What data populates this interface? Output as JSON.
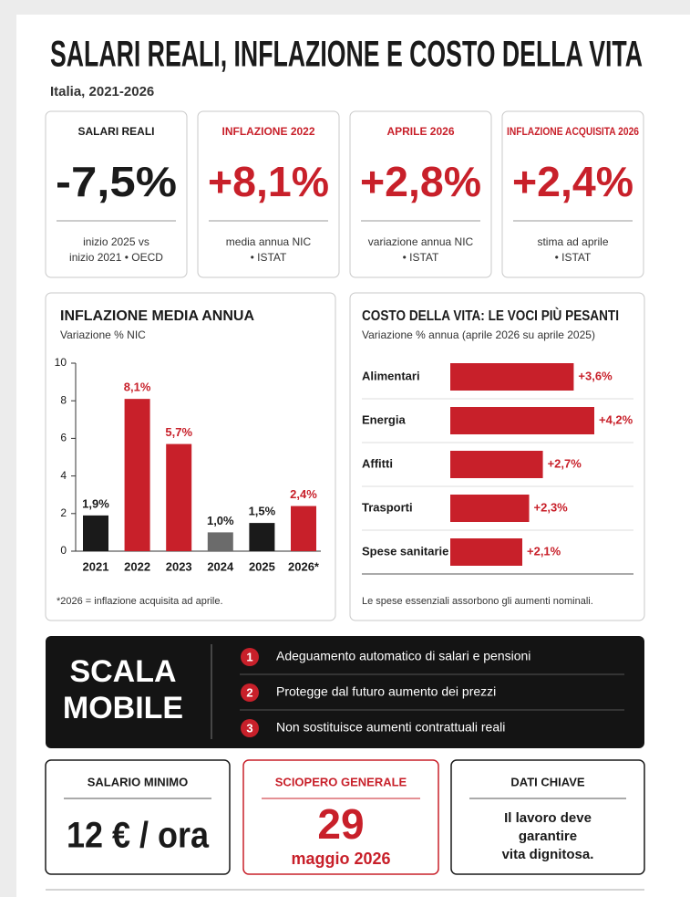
{
  "header": {
    "title": "SALARI REALI, INFLAZIONE E COSTO DELLA VITA",
    "subtitle": "Italia, 2021-2026"
  },
  "kpis": [
    {
      "label": "SALARI REALI",
      "value": "-7,5%",
      "note": [
        "inizio 2025 vs",
        "inizio 2021 • OECD"
      ]
    },
    {
      "label": "INFLAZIONE 2022",
      "value": "+8,1%",
      "note": [
        "media annua NIC",
        "• ISTAT"
      ]
    },
    {
      "label": "APRILE 2026",
      "value": "+2,8%",
      "note": [
        "variazione annua NIC",
        "• ISTAT"
      ]
    },
    {
      "label": "INFLAZIONE ACQUISITA 2026",
      "value": "+2,4%",
      "note": [
        "stima ad aprile",
        "• ISTAT"
      ]
    }
  ],
  "chart_data": [
    {
      "type": "bar",
      "title": "INFLAZIONE MEDIA ANNUA",
      "subtitle": "Variazione % NIC",
      "categories": [
        "2021",
        "2022",
        "2023",
        "2024",
        "2025",
        "2026*"
      ],
      "values": [
        1.9,
        8.1,
        5.7,
        1.0,
        1.5,
        2.4
      ],
      "value_labels": [
        "1,9%",
        "8,1%",
        "5,7%",
        "1,0%",
        "1,5%",
        "2,4%"
      ],
      "colors": [
        "#1a1a1a",
        "#c8202a",
        "#c8202a",
        "#6b6b6b",
        "#1a1a1a",
        "#c8202a"
      ],
      "label_colors": [
        "#1a1a1a",
        "#c8202a",
        "#c8202a",
        "#1a1a1a",
        "#1a1a1a",
        "#c8202a"
      ],
      "ylim": [
        0,
        10
      ],
      "yticks": [
        0,
        2,
        4,
        6,
        8,
        10
      ],
      "footnote": "*2026 = inflazione acquisita ad aprile."
    },
    {
      "type": "hbar",
      "title": "COSTO DELLA VITA: LE VOCI PIÙ PESANTI",
      "subtitle": "Variazione % annua (aprile 2026 su aprile 2025)",
      "categories": [
        "Alimentari",
        "Energia",
        "Affitti",
        "Trasporti",
        "Spese sanitarie"
      ],
      "values": [
        3.6,
        4.2,
        2.7,
        2.3,
        2.1
      ],
      "value_labels": [
        "+3,6%",
        "+4,2%",
        "+2,7%",
        "+2,3%",
        "+2,1%"
      ],
      "color": "#c8202a",
      "footnote": "Le spese essenziali assorbono gli aumenti nominali."
    }
  ],
  "scala_mobile": {
    "title": [
      "SCALA",
      "MOBILE"
    ],
    "items": [
      {
        "number": 1,
        "text": "Adeguamento automatico di salari e pensioni"
      },
      {
        "number": 2,
        "text": "Protegge dal futuro aumento dei prezzi"
      },
      {
        "number": 3,
        "text": "Non sostituisce aumenti contrattuali reali"
      }
    ]
  },
  "bottom": [
    {
      "label": "SALARIO MINIMO",
      "value": "12 € / ora"
    },
    {
      "label": "SCIOPERO GENERALE",
      "value": "29",
      "sub": "maggio 2026"
    },
    {
      "label": "DATI CHIAVE",
      "lines": [
        "Il lavoro deve",
        "garantire",
        "vita dignitosa."
      ]
    }
  ]
}
